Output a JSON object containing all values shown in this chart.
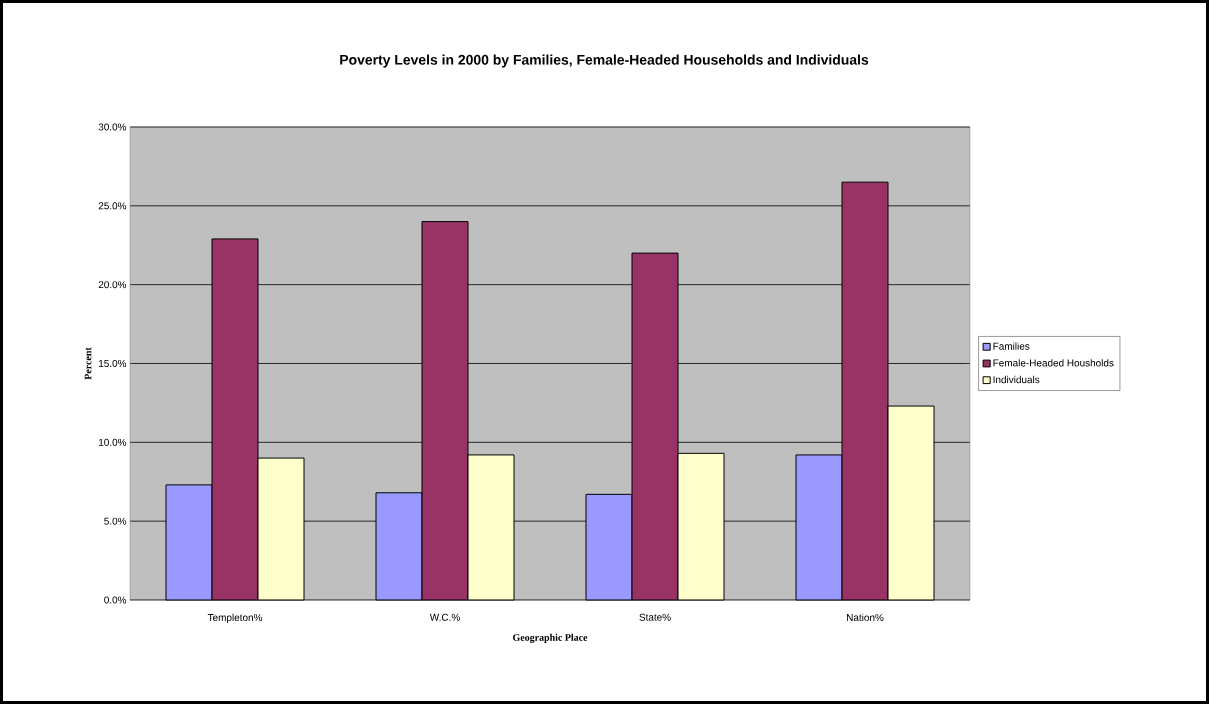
{
  "chart_data": {
    "type": "bar",
    "title": "Poverty Levels in 2000 by Families, Female-Headed Households and Individuals",
    "xlabel": "Geographic Place",
    "ylabel": "Percent",
    "categories": [
      "Templeton%",
      "W.C.%",
      "State%",
      "Nation%"
    ],
    "series": [
      {
        "name": "Families",
        "color": "#9999ff",
        "values": [
          7.3,
          6.8,
          6.7,
          9.2
        ]
      },
      {
        "name": "Female-Headed Housholds",
        "color": "#993366",
        "values": [
          22.9,
          24.0,
          22.0,
          26.5
        ]
      },
      {
        "name": "Individuals",
        "color": "#ffffcc",
        "values": [
          9.0,
          9.2,
          9.3,
          12.3
        ]
      }
    ],
    "ylim": [
      0,
      30
    ],
    "yticks": [
      {
        "value": 0,
        "label": "0.0%"
      },
      {
        "value": 5,
        "label": "5.0%"
      },
      {
        "value": 10,
        "label": "10.0%"
      },
      {
        "value": 15,
        "label": "15.0%"
      },
      {
        "value": 20,
        "label": "20.0%"
      },
      {
        "value": 25,
        "label": "25.0%"
      },
      {
        "value": 30,
        "label": "30.0%"
      }
    ],
    "grid": "y",
    "legend": "right"
  }
}
